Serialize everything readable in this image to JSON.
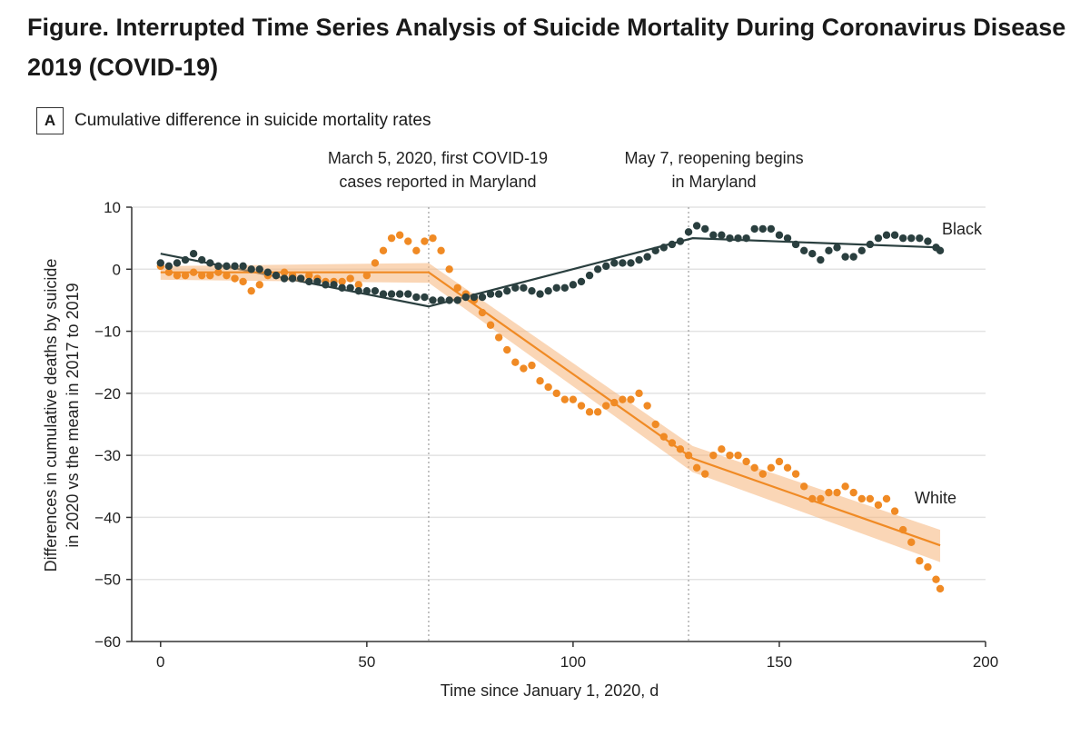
{
  "figure": {
    "title": "Figure.  Interrupted Time Series Analysis of Suicide Mortality During Coronavirus Disease 2019 (COVID-19)"
  },
  "panel": {
    "letter": "A",
    "title": "Cumulative difference in suicide mortality rates"
  },
  "colors": {
    "black_series": "#2a3f3f",
    "white_series": "#f08a24",
    "white_band": "#f6b57a",
    "grid": "#e3e3e3",
    "event_line": "#8a8a8a"
  },
  "chart_data": {
    "type": "scatter",
    "xlabel": "Time since January 1, 2020, d",
    "ylabel": [
      "Differences in cumulative deaths by suicide",
      "in 2020 vs the mean in 2017 to 2019"
    ],
    "xlim": [
      -7,
      200
    ],
    "ylim": [
      -60,
      10
    ],
    "x_ticks": [
      0,
      50,
      100,
      150,
      200
    ],
    "y_ticks": [
      10,
      0,
      -10,
      -20,
      -30,
      -40,
      -50,
      -60
    ],
    "grid": "horizontal",
    "events": [
      {
        "x": 65,
        "label_lines": [
          "March 5, 2020, first COVID-19",
          "cases reported in Maryland"
        ]
      },
      {
        "x": 128,
        "label_lines": [
          "May 7, reopening begins",
          "in Maryland"
        ]
      }
    ],
    "series": [
      {
        "name": "Black",
        "points": [
          [
            0,
            1
          ],
          [
            2,
            0.5
          ],
          [
            4,
            1
          ],
          [
            6,
            1.5
          ],
          [
            8,
            2.5
          ],
          [
            10,
            1.5
          ],
          [
            12,
            1
          ],
          [
            14,
            0.5
          ],
          [
            16,
            0.5
          ],
          [
            18,
            0.5
          ],
          [
            20,
            0.5
          ],
          [
            22,
            0
          ],
          [
            24,
            0
          ],
          [
            26,
            -0.5
          ],
          [
            28,
            -1
          ],
          [
            30,
            -1.5
          ],
          [
            32,
            -1.5
          ],
          [
            34,
            -1.5
          ],
          [
            36,
            -2
          ],
          [
            38,
            -2
          ],
          [
            40,
            -2.5
          ],
          [
            42,
            -2.5
          ],
          [
            44,
            -3
          ],
          [
            46,
            -3
          ],
          [
            48,
            -3.5
          ],
          [
            50,
            -3.5
          ],
          [
            52,
            -3.5
          ],
          [
            54,
            -4
          ],
          [
            56,
            -4
          ],
          [
            58,
            -4
          ],
          [
            60,
            -4
          ],
          [
            62,
            -4.5
          ],
          [
            64,
            -4.5
          ],
          [
            66,
            -5
          ],
          [
            68,
            -5
          ],
          [
            70,
            -5
          ],
          [
            72,
            -5
          ],
          [
            74,
            -4.5
          ],
          [
            76,
            -4.5
          ],
          [
            78,
            -4.5
          ],
          [
            80,
            -4
          ],
          [
            82,
            -4
          ],
          [
            84,
            -3.5
          ],
          [
            86,
            -3
          ],
          [
            88,
            -3
          ],
          [
            90,
            -3.5
          ],
          [
            92,
            -4
          ],
          [
            94,
            -3.5
          ],
          [
            96,
            -3
          ],
          [
            98,
            -3
          ],
          [
            100,
            -2.5
          ],
          [
            102,
            -2
          ],
          [
            104,
            -1
          ],
          [
            106,
            0
          ],
          [
            108,
            0.5
          ],
          [
            110,
            1
          ],
          [
            112,
            1
          ],
          [
            114,
            1
          ],
          [
            116,
            1.5
          ],
          [
            118,
            2
          ],
          [
            120,
            3
          ],
          [
            122,
            3.5
          ],
          [
            124,
            4
          ],
          [
            126,
            4.5
          ],
          [
            128,
            6
          ],
          [
            130,
            7
          ],
          [
            132,
            6.5
          ],
          [
            134,
            5.5
          ],
          [
            136,
            5.5
          ],
          [
            138,
            5
          ],
          [
            140,
            5
          ],
          [
            142,
            5
          ],
          [
            144,
            6.5
          ],
          [
            146,
            6.5
          ],
          [
            148,
            6.5
          ],
          [
            150,
            5.5
          ],
          [
            152,
            5
          ],
          [
            154,
            4
          ],
          [
            156,
            3
          ],
          [
            158,
            2.5
          ],
          [
            160,
            1.5
          ],
          [
            162,
            3
          ],
          [
            164,
            3.5
          ],
          [
            166,
            2
          ],
          [
            168,
            2
          ],
          [
            170,
            3
          ],
          [
            172,
            4
          ],
          [
            174,
            5
          ],
          [
            176,
            5.5
          ],
          [
            178,
            5.5
          ],
          [
            180,
            5
          ],
          [
            182,
            5
          ],
          [
            184,
            5
          ],
          [
            186,
            4.5
          ],
          [
            188,
            3.5
          ],
          [
            189,
            3
          ]
        ],
        "fit": [
          [
            0,
            2.5
          ],
          [
            65,
            -6
          ],
          [
            129,
            5
          ],
          [
            189,
            3.5
          ]
        ]
      },
      {
        "name": "White",
        "points": [
          [
            0,
            0.5
          ],
          [
            2,
            -0.5
          ],
          [
            4,
            -1
          ],
          [
            6,
            -1
          ],
          [
            8,
            -0.5
          ],
          [
            10,
            -1
          ],
          [
            12,
            -1
          ],
          [
            14,
            -0.5
          ],
          [
            16,
            -1
          ],
          [
            18,
            -1.5
          ],
          [
            20,
            -2
          ],
          [
            22,
            -3.5
          ],
          [
            24,
            -2.5
          ],
          [
            26,
            -1
          ],
          [
            28,
            -1
          ],
          [
            30,
            -0.5
          ],
          [
            32,
            -1
          ],
          [
            34,
            -1.5
          ],
          [
            36,
            -1
          ],
          [
            38,
            -1.5
          ],
          [
            40,
            -2
          ],
          [
            42,
            -2
          ],
          [
            44,
            -2
          ],
          [
            46,
            -1.5
          ],
          [
            48,
            -2.5
          ],
          [
            50,
            -1
          ],
          [
            52,
            1
          ],
          [
            54,
            3
          ],
          [
            56,
            5
          ],
          [
            58,
            5.5
          ],
          [
            60,
            4.5
          ],
          [
            62,
            3
          ],
          [
            64,
            4.5
          ],
          [
            66,
            5
          ],
          [
            68,
            3
          ],
          [
            70,
            0
          ],
          [
            72,
            -3
          ],
          [
            74,
            -4
          ],
          [
            76,
            -5
          ],
          [
            78,
            -7
          ],
          [
            80,
            -9
          ],
          [
            82,
            -11
          ],
          [
            84,
            -13
          ],
          [
            86,
            -15
          ],
          [
            88,
            -16
          ],
          [
            90,
            -15.5
          ],
          [
            92,
            -18
          ],
          [
            94,
            -19
          ],
          [
            96,
            -20
          ],
          [
            98,
            -21
          ],
          [
            100,
            -21
          ],
          [
            102,
            -22
          ],
          [
            104,
            -23
          ],
          [
            106,
            -23
          ],
          [
            108,
            -22
          ],
          [
            110,
            -21.5
          ],
          [
            112,
            -21
          ],
          [
            114,
            -21
          ],
          [
            116,
            -20
          ],
          [
            118,
            -22
          ],
          [
            120,
            -25
          ],
          [
            122,
            -27
          ],
          [
            124,
            -28
          ],
          [
            126,
            -29
          ],
          [
            128,
            -30
          ],
          [
            130,
            -32
          ],
          [
            132,
            -33
          ],
          [
            134,
            -30
          ],
          [
            136,
            -29
          ],
          [
            138,
            -30
          ],
          [
            140,
            -30
          ],
          [
            142,
            -31
          ],
          [
            144,
            -32
          ],
          [
            146,
            -33
          ],
          [
            148,
            -32
          ],
          [
            150,
            -31
          ],
          [
            152,
            -32
          ],
          [
            154,
            -33
          ],
          [
            156,
            -35
          ],
          [
            158,
            -37
          ],
          [
            160,
            -37
          ],
          [
            162,
            -36
          ],
          [
            164,
            -36
          ],
          [
            166,
            -35
          ],
          [
            168,
            -36
          ],
          [
            170,
            -37
          ],
          [
            172,
            -37
          ],
          [
            174,
            -38
          ],
          [
            176,
            -37
          ],
          [
            178,
            -39
          ],
          [
            180,
            -42
          ],
          [
            182,
            -44
          ],
          [
            184,
            -47
          ],
          [
            186,
            -48
          ],
          [
            188,
            -50
          ],
          [
            189,
            -51.5
          ]
        ],
        "fit": [
          [
            0,
            -0.5
          ],
          [
            65,
            -0.5
          ],
          [
            129,
            -30.5
          ],
          [
            189,
            -44.5
          ]
        ]
      }
    ]
  }
}
